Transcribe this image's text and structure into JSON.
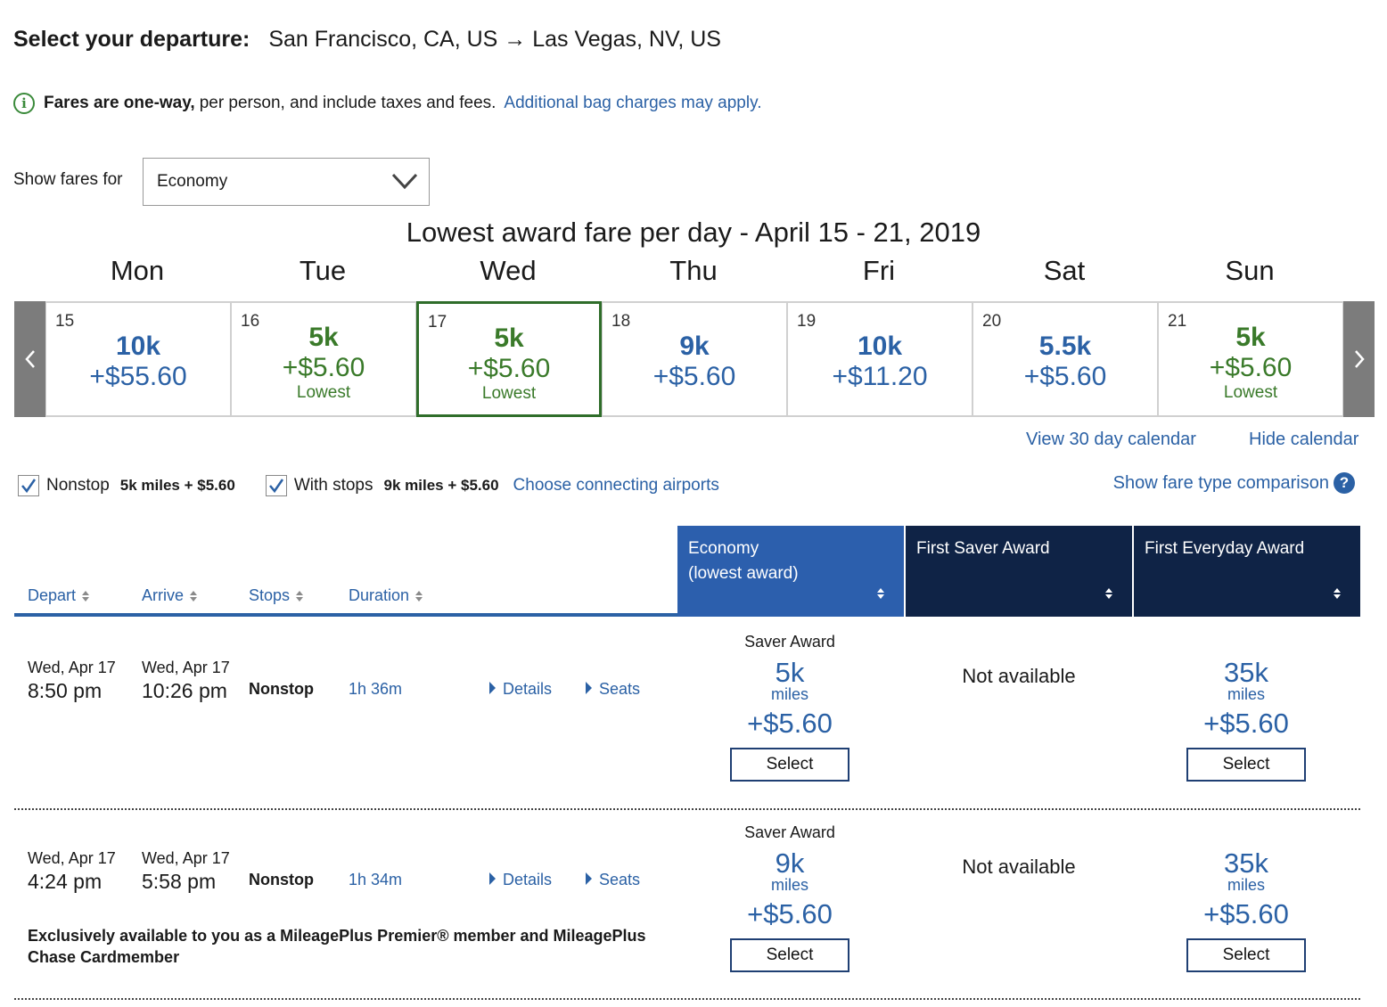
{
  "header": {
    "label": "Select your departure:",
    "route": "San Francisco, CA, US → Las Vegas, NV, US"
  },
  "info": {
    "bold": "Fares are one-way,",
    "text": "per person, and include taxes and fees.",
    "link": "Additional bag charges may apply."
  },
  "fares_filter": {
    "label": "Show fares for",
    "value": "Economy"
  },
  "calendar": {
    "title": "Lowest award fare per day - April 15 - 21, 2019",
    "day_names": [
      "Mon",
      "Tue",
      "Wed",
      "Thu",
      "Fri",
      "Sat",
      "Sun"
    ],
    "days": [
      {
        "num": "15",
        "miles": "10k",
        "fee": "+$55.60",
        "lowest": ""
      },
      {
        "num": "16",
        "miles": "5k",
        "fee": "+$5.60",
        "lowest": "Lowest"
      },
      {
        "num": "17",
        "miles": "5k",
        "fee": "+$5.60",
        "lowest": "Lowest"
      },
      {
        "num": "18",
        "miles": "9k",
        "fee": "+$5.60",
        "lowest": ""
      },
      {
        "num": "19",
        "miles": "10k",
        "fee": "+$11.20",
        "lowest": ""
      },
      {
        "num": "20",
        "miles": "5.5k",
        "fee": "+$5.60",
        "lowest": ""
      },
      {
        "num": "21",
        "miles": "5k",
        "fee": "+$5.60",
        "lowest": "Lowest"
      }
    ],
    "selected_day": "17",
    "view_30": "View 30 day calendar",
    "hide": "Hide calendar"
  },
  "filters": {
    "nonstop_label": "Nonstop",
    "nonstop_price": "5k miles + $5.60",
    "stops_label": "With stops",
    "stops_price": "9k miles + $5.60",
    "connecting": "Choose connecting airports",
    "compare": "Show fare type comparison",
    "compare_icon": "?"
  },
  "columns": {
    "depart": "Depart",
    "arrive": "Arrive",
    "stops": "Stops",
    "duration": "Duration"
  },
  "fare_headers": {
    "economy_1": "Economy",
    "economy_2": "(lowest award)",
    "first_saver": "First Saver Award",
    "first_everyday": "First Everyday Award"
  },
  "colors": {
    "economy_header": "#2c5fad",
    "first_header": "#0f2346",
    "link": "#2b61a5",
    "lowest": "#3a7a2a"
  },
  "flights": [
    {
      "depart_date": "Wed, Apr 17",
      "depart_time": "8:50 pm",
      "arrive_date": "Wed, Apr 17",
      "arrive_time": "10:26 pm",
      "stops": "Nonstop",
      "duration": "1h 36m",
      "details": "Details",
      "seats": "Seats",
      "note": "",
      "economy": {
        "type": "Saver Award",
        "miles": "5k",
        "unit": "miles",
        "fee": "+$5.60",
        "select": "Select"
      },
      "first_saver": "Not available",
      "first_everyday": {
        "miles": "35k",
        "unit": "miles",
        "fee": "+$5.60",
        "select": "Select"
      }
    },
    {
      "depart_date": "Wed, Apr 17",
      "depart_time": "4:24 pm",
      "arrive_date": "Wed, Apr 17",
      "arrive_time": "5:58 pm",
      "stops": "Nonstop",
      "duration": "1h 34m",
      "details": "Details",
      "seats": "Seats",
      "note": "Exclusively available to you as a MileagePlus Premier® member and MileagePlus Chase Cardmember",
      "economy": {
        "type": "Saver Award",
        "miles": "9k",
        "unit": "miles",
        "fee": "+$5.60",
        "select": "Select"
      },
      "first_saver": "Not available",
      "first_everyday": {
        "miles": "35k",
        "unit": "miles",
        "fee": "+$5.60",
        "select": "Select"
      }
    }
  ]
}
